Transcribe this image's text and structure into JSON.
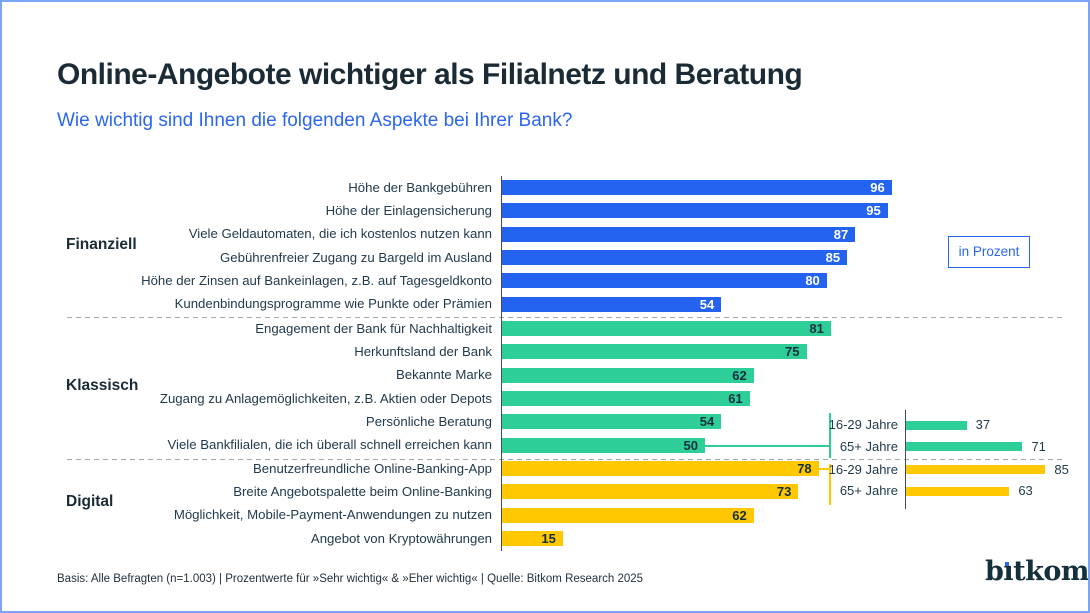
{
  "header": {
    "title": "Online-Angebote wichtiger als Filialnetz und Beratung",
    "subtitle": "Wie wichtig sind Ihnen die folgenden Aspekte bei Ihrer Bank?"
  },
  "unit_badge": "in Prozent",
  "colors": {
    "accent_blue": "#2B66F1",
    "heading": "#1A2B35",
    "frame_border": "#7BA4F8"
  },
  "footer": {
    "note": "Basis: Alle Befragten (n=1.003) | Prozentwerte für »Sehr wichtig« & »Eher wichtig« | Quelle: Bitkom Research 2025",
    "logo": "bitkom"
  },
  "chart_data": {
    "type": "bar",
    "orientation": "horizontal",
    "unit": "percent",
    "xlim": [
      0,
      100
    ],
    "value_labels": "on-bar",
    "grid": false,
    "groups": [
      {
        "name": "Finanziell",
        "color": "#2363EF",
        "items": [
          {
            "label": "Höhe der Bankgebühren",
            "value": 96
          },
          {
            "label": "Höhe der Einlagensicherung",
            "value": 95
          },
          {
            "label": "Viele Geldautomaten, die ich kostenlos nutzen kann",
            "value": 87
          },
          {
            "label": "Gebührenfreier Zugang zu Bargeld im Ausland",
            "value": 85
          },
          {
            "label": "Höhe der Zinsen auf Bankeinlagen, z.B. auf Tagesgeldkonto",
            "value": 80
          },
          {
            "label": "Kundenbindungsprogramme wie Punkte oder Prämien",
            "value": 54
          }
        ]
      },
      {
        "name": "Klassisch",
        "color": "#2DCE97",
        "items": [
          {
            "label": "Engagement der Bank für Nachhaltigkeit",
            "value": 81
          },
          {
            "label": "Herkunftsland der Bank",
            "value": 75
          },
          {
            "label": "Bekannte Marke",
            "value": 62
          },
          {
            "label": "Zugang zu Anlagemöglichkeiten, z.B. Aktien oder Depots",
            "value": 61
          },
          {
            "label": "Persönliche Beratung",
            "value": 54
          },
          {
            "label": "Viele Bankfilialen, die ich überall schnell erreichen kann",
            "value": 50
          }
        ]
      },
      {
        "name": "Digital",
        "color": "#FFC800",
        "items": [
          {
            "label": "Benutzerfreundliche Online-Banking-App",
            "value": 78
          },
          {
            "label": "Breite Angebotspalette beim Online-Banking",
            "value": 73
          },
          {
            "label": "Möglichkeit, Mobile-Payment-Anwendungen zu nutzen",
            "value": 62
          },
          {
            "label": "Angebot von Kryptowährungen",
            "value": 15
          }
        ]
      }
    ],
    "breakouts": [
      {
        "parent_label": "Viele Bankfilialen, die ich überall schnell erreichen kann",
        "color": "#2DCE97",
        "rows": [
          {
            "label": "16-29 Jahre",
            "value": 37
          },
          {
            "label": "65+ Jahre",
            "value": 71
          }
        ]
      },
      {
        "parent_label": "Benutzerfreundliche Online-Banking-App",
        "color": "#FFC800",
        "rows": [
          {
            "label": "16-29 Jahre",
            "value": 85
          },
          {
            "label": "65+ Jahre",
            "value": 63
          }
        ]
      }
    ]
  }
}
